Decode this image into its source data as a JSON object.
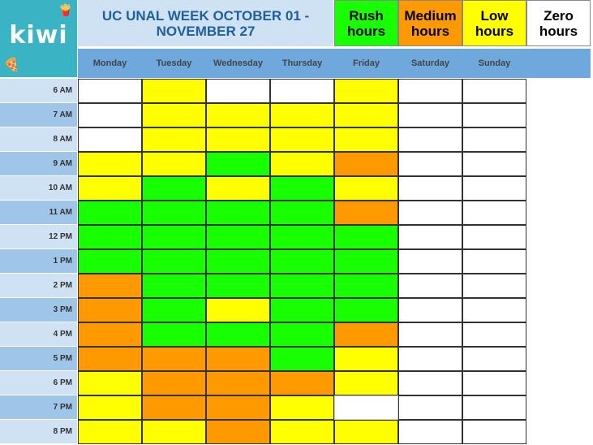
{
  "logo": {
    "text": "kiwi",
    "fries_icon": "fries-icon",
    "pizza_icon": "pizza-icon",
    "color": "#3ab3c4"
  },
  "title": "UC UNAL WEEK OCTOBER 01 - NOVEMBER 27",
  "legend": [
    {
      "label": "Rush hours",
      "color": "#17ff00"
    },
    {
      "label": "Medium hours",
      "color": "#ff9900"
    },
    {
      "label": "Low hours",
      "color": "#ffff00"
    },
    {
      "label": "Zero hours",
      "color": "#ffffff"
    }
  ],
  "days": [
    "Monday",
    "Tuesday",
    "Wednesday",
    "Thursday",
    "Friday",
    "Saturday",
    "Sunday"
  ],
  "colors": {
    "R": "#17ff00",
    "M": "#ff9900",
    "L": "#ffff00",
    "Z": "#ffffff",
    "N": "#ffffff"
  },
  "schedule": [
    {
      "time": "6 AM",
      "cells": [
        "Z",
        "L",
        "Z",
        "Z",
        "L",
        "Z",
        "Z"
      ]
    },
    {
      "time": "7 AM",
      "cells": [
        "Z",
        "L",
        "L",
        "L",
        "L",
        "Z",
        "Z"
      ]
    },
    {
      "time": "8 AM",
      "cells": [
        "Z",
        "L",
        "L",
        "L",
        "L",
        "Z",
        "Z"
      ]
    },
    {
      "time": "9 AM",
      "cells": [
        "L",
        "L",
        "R",
        "L",
        "M",
        "Z",
        "Z"
      ]
    },
    {
      "time": "10 AM",
      "cells": [
        "L",
        "R",
        "L",
        "R",
        "L",
        "Z",
        "Z"
      ]
    },
    {
      "time": "11 AM",
      "cells": [
        "R",
        "R",
        "R",
        "R",
        "M",
        "Z",
        "Z"
      ]
    },
    {
      "time": "12 PM",
      "cells": [
        "R",
        "R",
        "R",
        "R",
        "R",
        "Z",
        "Z"
      ]
    },
    {
      "time": "1 PM",
      "cells": [
        "R",
        "R",
        "R",
        "R",
        "R",
        "Z",
        "Z"
      ]
    },
    {
      "time": "2 PM",
      "cells": [
        "M",
        "R",
        "R",
        "R",
        "R",
        "Z",
        "Z"
      ]
    },
    {
      "time": "3 PM",
      "cells": [
        "M",
        "R",
        "L",
        "R",
        "R",
        "Z",
        "Z"
      ]
    },
    {
      "time": "4 PM",
      "cells": [
        "M",
        "R",
        "R",
        "R",
        "M",
        "Z",
        "Z"
      ]
    },
    {
      "time": "5 PM",
      "cells": [
        "M",
        "M",
        "M",
        "R",
        "L",
        "Z",
        "Z"
      ]
    },
    {
      "time": "6 PM",
      "cells": [
        "L",
        "M",
        "M",
        "M",
        "L",
        "Z",
        "Z"
      ]
    },
    {
      "time": "7 PM",
      "cells": [
        "L",
        "M",
        "M",
        "L",
        "N",
        "Z",
        "Z"
      ]
    },
    {
      "time": "8 PM",
      "cells": [
        "L",
        "L",
        "M",
        "L",
        "L",
        "Z",
        "Z"
      ]
    }
  ]
}
